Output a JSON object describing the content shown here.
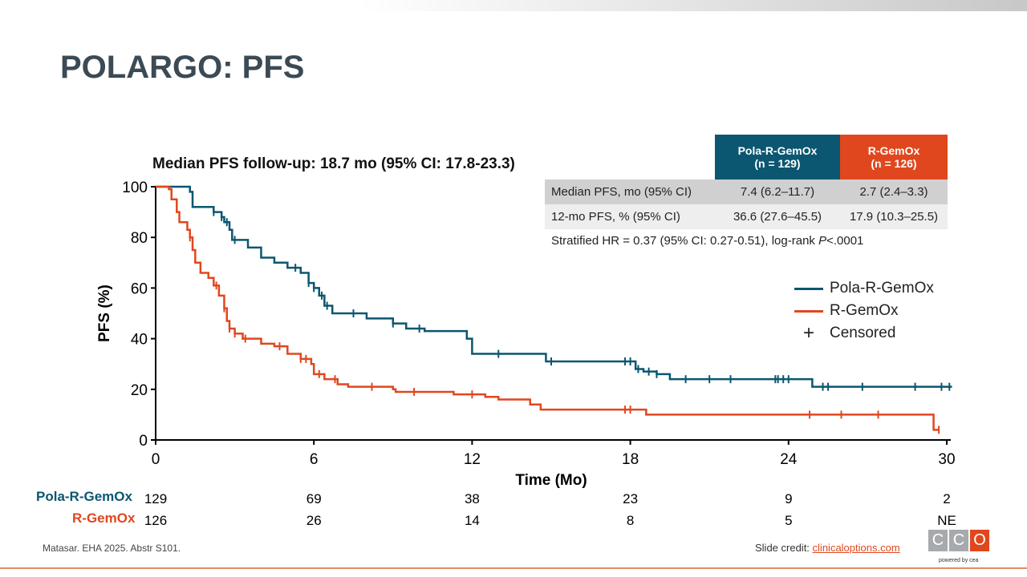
{
  "title": "POLARGO: PFS",
  "followup": "Median PFS follow-up: 18.7 mo (95% CI: 17.8-23.3)",
  "table": {
    "headers": [
      {
        "name": "Pola-R-GemOx",
        "n": "(n = 129)"
      },
      {
        "name": "R-GemOx",
        "n": "(n = 126)"
      }
    ],
    "rows": [
      {
        "label": "Median PFS, mo (95% CI)",
        "a": "7.4 (6.2–11.7)",
        "b": "2.7 (2.4–3.3)"
      },
      {
        "label": "12-mo PFS, % (95% CI)",
        "a": "36.6 (27.6–45.5)",
        "b": "17.9 (10.3–25.5)"
      }
    ],
    "hr_text": "Stratified HR = 0.37 (95% CI: 0.27-0.51), log-rank ",
    "hr_p": "P",
    "hr_val": "<.0001"
  },
  "chart_data": {
    "type": "line",
    "title": "",
    "xlabel": "Time (Mo)",
    "ylabel": "PFS (%)",
    "xlim": [
      0,
      30
    ],
    "ylim": [
      0,
      100
    ],
    "xticks": [
      "0",
      "6",
      "12",
      "18",
      "24",
      "30"
    ],
    "yticks": [
      "0",
      "20",
      "40",
      "60",
      "80",
      "100"
    ],
    "legend_position": "right",
    "legend": [
      "Pola-R-GemOx",
      "R-GemOx",
      "Censored"
    ],
    "series": [
      {
        "name": "Pola-R-GemOx",
        "color": "#0b5670",
        "steps": [
          [
            0,
            100
          ],
          [
            1.3,
            98
          ],
          [
            1.4,
            92
          ],
          [
            2,
            92
          ],
          [
            2.2,
            90
          ],
          [
            2.5,
            88
          ],
          [
            2.6,
            86
          ],
          [
            2.8,
            83
          ],
          [
            2.9,
            79
          ],
          [
            3.5,
            76
          ],
          [
            4,
            72
          ],
          [
            4.5,
            70
          ],
          [
            5,
            68
          ],
          [
            5.5,
            66
          ],
          [
            5.8,
            62
          ],
          [
            6,
            60
          ],
          [
            6.2,
            57
          ],
          [
            6.4,
            53
          ],
          [
            6.7,
            50
          ],
          [
            7.5,
            50
          ],
          [
            8,
            48
          ],
          [
            9,
            46
          ],
          [
            9.5,
            44
          ],
          [
            10.2,
            43
          ],
          [
            11.6,
            43
          ],
          [
            11.8,
            40
          ],
          [
            12,
            34
          ],
          [
            14.6,
            34
          ],
          [
            14.8,
            31
          ],
          [
            18,
            31
          ],
          [
            18.2,
            28
          ],
          [
            18.5,
            27
          ],
          [
            19,
            26
          ],
          [
            19.5,
            24
          ],
          [
            24.9,
            24
          ],
          [
            24.9,
            21
          ],
          [
            30.2,
            21
          ]
        ],
        "censored": [
          2.2,
          2.5,
          2.7,
          3,
          5.3,
          5.8,
          6,
          6.3,
          6.5,
          7.5,
          9,
          10,
          13,
          15,
          17.8,
          18,
          18.3,
          18.7,
          19,
          20.1,
          21,
          21.8,
          23.5,
          23.6,
          23.8,
          24,
          25.3,
          25.5,
          26.8,
          28.8,
          29.8,
          30.1
        ]
      },
      {
        "name": "R-GemOx",
        "color": "#e0471e",
        "steps": [
          [
            0,
            100
          ],
          [
            0.5,
            99
          ],
          [
            0.6,
            95
          ],
          [
            0.8,
            90
          ],
          [
            0.9,
            86
          ],
          [
            1.2,
            83
          ],
          [
            1.3,
            80
          ],
          [
            1.4,
            75
          ],
          [
            1.5,
            70
          ],
          [
            1.7,
            66
          ],
          [
            2,
            64
          ],
          [
            2.2,
            61
          ],
          [
            2.4,
            57
          ],
          [
            2.6,
            52
          ],
          [
            2.7,
            47
          ],
          [
            2.8,
            44
          ],
          [
            3,
            42
          ],
          [
            3.3,
            40
          ],
          [
            4,
            38
          ],
          [
            4.5,
            37
          ],
          [
            5,
            34
          ],
          [
            5.5,
            32
          ],
          [
            5.9,
            30
          ],
          [
            6,
            26
          ],
          [
            6.4,
            24
          ],
          [
            6.9,
            22
          ],
          [
            7.3,
            21
          ],
          [
            9,
            20
          ],
          [
            9.1,
            19
          ],
          [
            10.5,
            19
          ],
          [
            11.3,
            18
          ],
          [
            12.5,
            17
          ],
          [
            13,
            16
          ],
          [
            14.2,
            14
          ],
          [
            14.6,
            12
          ],
          [
            18.6,
            12
          ],
          [
            18.6,
            10
          ],
          [
            29.5,
            10
          ],
          [
            29.5,
            4
          ],
          [
            29.7,
            4
          ]
        ],
        "censored": [
          1.3,
          2.3,
          2.6,
          2.8,
          3,
          3.4,
          4.7,
          5.5,
          5.7,
          6.2,
          6.8,
          8.2,
          9.8,
          12,
          17.8,
          18,
          24.8,
          26,
          27.4,
          29.7
        ]
      }
    ],
    "at_risk": {
      "times": [
        0,
        6,
        12,
        18,
        24,
        30
      ],
      "rows": [
        {
          "label": "Pola-R-GemOx",
          "values": [
            "129",
            "69",
            "38",
            "23",
            "9",
            "2"
          ]
        },
        {
          "label": "R-GemOx",
          "values": [
            "126",
            "26",
            "14",
            "8",
            "5",
            "NE"
          ]
        }
      ]
    }
  },
  "footer": {
    "citation": "Matasar. EHA 2025. Abstr S101.",
    "credit_label": "Slide credit: ",
    "credit_link": "clinicaloptions.com",
    "logo": "CCO",
    "powered": "powered by cea"
  },
  "colors": {
    "pola": "#0b5670",
    "rgemox": "#e0471e"
  }
}
